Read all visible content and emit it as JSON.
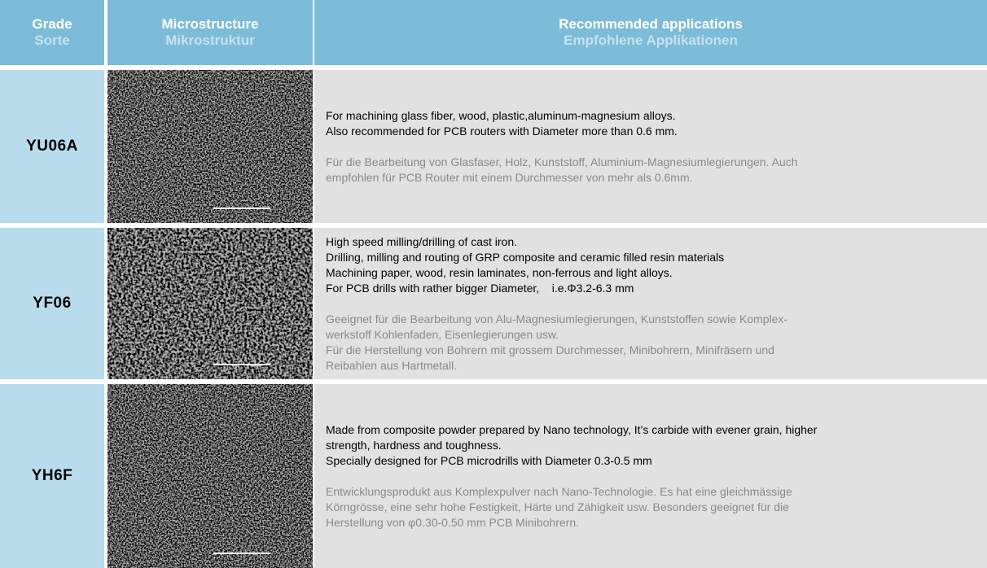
{
  "header": {
    "grade": {
      "en": "Grade",
      "de": "Sorte"
    },
    "microstructure": {
      "en": "Microstructure",
      "de": "Mikrostruktur"
    },
    "applications": {
      "en": "Recommended applications",
      "de": "Empfohlene Applikationen"
    }
  },
  "rows": [
    {
      "grade": "YU06A",
      "en": [
        "For machining glass fiber, wood, plastic,aluminum-magnesium alloys.",
        "Also recommended for PCB routers with Diameter more than 0.6 mm."
      ],
      "de": [
        "Für die Bearbeitung von Glasfaser, Holz, Kunststoff, Aluminium-Magnesiumlegierungen. Auch",
        "empfohlen für PCB Router mit einem Durchmesser von mehr als 0.6mm."
      ]
    },
    {
      "grade": "YF06",
      "en": [
        "High speed milling/drilling of cast iron.",
        "Drilling, milling and routing of GRP composite and ceramic filled resin materials",
        "Machining paper, wood, resin laminates, non-ferrous and light alloys.",
        "For PCB drills with rather bigger Diameter,    i.e.Φ3.2-6.3 mm"
      ],
      "de": [
        "Geeignet für die Bearbeitung von Alu-Magnesiumlegierungen, Kunststoffen sowie Komplex-",
        "werkstoff Kohlenfaden, Eisenlegierungen usw.",
        "Für die Herstellung von Bohrern mit grossem Durchmesser, Minibohrern, Minifräsern und",
        "Reibahlen aus Hartmetall."
      ]
    },
    {
      "grade": "YH6F",
      "en": [
        "Made from composite powder prepared by Nano technology, It’s carbide with evener grain, higher",
        "strength, hardness and toughness.",
        "Specially designed for PCB microdrills with Diameter 0.3-0.5 mm"
      ],
      "de": [
        "Entwicklungsprodukt aus Komplexpulver nach Nano-Technologie. Es hat eine gleichmässige",
        "Körngrösse, eine sehr hohe Festigkeit, Härte und Zähigkeit usw. Besonders geeignet für die",
        "Herstellung von φ0.30-0.50 mm PCB Minibohrern."
      ]
    }
  ]
}
